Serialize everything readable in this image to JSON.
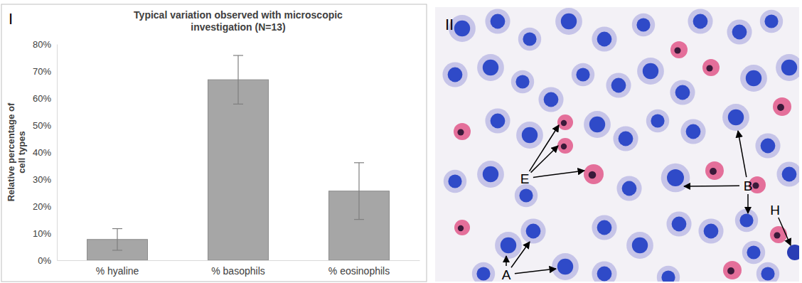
{
  "chart_data": {
    "type": "bar",
    "title": "Typical variation observed with microscopic investigation (N=13)",
    "panel_label": "I",
    "y_label": "Relative percentage of cell types",
    "categories": [
      "% hyaline",
      "% basophils",
      "% eosinophils"
    ],
    "values": [
      7.7,
      66.8,
      25.6
    ],
    "errors": [
      4,
      9,
      10.5
    ],
    "color": "#a6a6a6",
    "ylim": [
      0,
      80
    ],
    "yticks": [
      {
        "value": 0,
        "label": "0%"
      },
      {
        "value": 10,
        "label": "10%"
      },
      {
        "value": 20,
        "label": "20%"
      },
      {
        "value": 30,
        "label": "30%"
      },
      {
        "value": 40,
        "label": "40%"
      },
      {
        "value": 50,
        "label": "50%"
      },
      {
        "value": 60,
        "label": "60%"
      },
      {
        "value": 70,
        "label": "70%"
      },
      {
        "value": 80,
        "label": "80%"
      }
    ],
    "grid": false
  },
  "micrograph": {
    "panel_label": "II",
    "labels": [
      "E",
      "B",
      "H",
      "A"
    ]
  }
}
